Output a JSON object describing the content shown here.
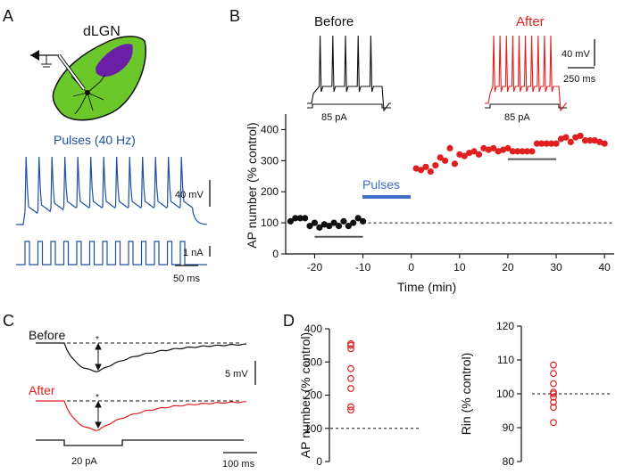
{
  "panels": {
    "A": {
      "letter": "A",
      "region_label": "dLGN",
      "pulse_label": "Pulses (40 Hz)",
      "voltage_scale": "40 mV",
      "current_scale": "1 nA",
      "time_scale": "50 ms",
      "pulse_count": 13
    },
    "B": {
      "letter": "B",
      "before_label": "Before",
      "after_label": "After",
      "before_current": "85 pA",
      "after_current": "85 pA",
      "voltage_scale": "40 mV",
      "time_scale": "250 ms",
      "pulses_bar_label": "Pulses",
      "before_spike_count": 5,
      "after_spike_count": 10
    },
    "C": {
      "letter": "C",
      "before_label": "Before",
      "after_label": "After",
      "asterisk": "*",
      "voltage_scale": "5 mV",
      "current_label": "20 pA",
      "time_scale": "100 ms"
    },
    "D": {
      "letter": "D"
    }
  },
  "colors": {
    "black": "#111111",
    "red": "#e02020",
    "blue": "#2050a0",
    "pulses_bar": "#3d6fc4",
    "green": "#6cc72a",
    "purple": "#6a1fa8"
  },
  "chart_data": [
    {
      "id": "timecourse",
      "type": "scatter",
      "xlabel": "Time (min)",
      "ylabel": "AP number (% control)",
      "xlim": [
        -26,
        42
      ],
      "ylim": [
        0,
        450
      ],
      "xticks": [
        -20,
        -10,
        0,
        10,
        20,
        30,
        40
      ],
      "yticks": [
        0,
        100,
        200,
        300,
        400
      ],
      "reference_line": 100,
      "pulses_interval": [
        -9,
        0
      ],
      "series": [
        {
          "name": "Before",
          "color": "black",
          "x": [
            -25,
            -24,
            -23,
            -22,
            -21,
            -20,
            -19,
            -18,
            -17,
            -16,
            -15,
            -14,
            -13,
            -12,
            -11,
            -10
          ],
          "y": [
            105,
            115,
            115,
            115,
            90,
            100,
            85,
            95,
            90,
            100,
            90,
            105,
            90,
            100,
            115,
            105
          ]
        },
        {
          "name": "After",
          "color": "red",
          "x": [
            1,
            2,
            3,
            4,
            5,
            6,
            7,
            8,
            9,
            10,
            11,
            12,
            13,
            14,
            15,
            16,
            17,
            18,
            19,
            20,
            21,
            22,
            23,
            24,
            25,
            26,
            27,
            28,
            29,
            30,
            31,
            32,
            33,
            34,
            35,
            36,
            37,
            38,
            39,
            40
          ],
          "y": [
            275,
            270,
            280,
            265,
            285,
            310,
            300,
            340,
            290,
            320,
            315,
            325,
            330,
            320,
            340,
            335,
            340,
            330,
            335,
            340,
            330,
            330,
            330,
            330,
            330,
            355,
            355,
            355,
            355,
            355,
            370,
            375,
            360,
            375,
            380,
            365,
            365,
            365,
            360,
            355
          ]
        }
      ],
      "baseline_bars": [
        {
          "x": [
            -20,
            -10
          ],
          "y": 55
        },
        {
          "x": [
            20,
            30
          ],
          "y": 305
        }
      ]
    },
    {
      "id": "ap_number",
      "type": "scatter",
      "xlabel": "",
      "ylabel": "AP number (% control)",
      "ylim": [
        0,
        400
      ],
      "yticks": [
        0,
        100,
        200,
        300,
        400
      ],
      "reference_line": 100,
      "values": [
        355,
        350,
        340,
        280,
        250,
        220,
        165,
        155
      ]
    },
    {
      "id": "rin",
      "type": "scatter",
      "xlabel": "",
      "ylabel": "Rin (% control)",
      "ylim": [
        80,
        120
      ],
      "yticks": [
        80,
        90,
        100,
        110,
        120
      ],
      "reference_line": 100,
      "values": [
        108.5,
        106,
        103,
        100.5,
        100,
        99,
        97.5,
        96,
        91.5
      ]
    }
  ]
}
